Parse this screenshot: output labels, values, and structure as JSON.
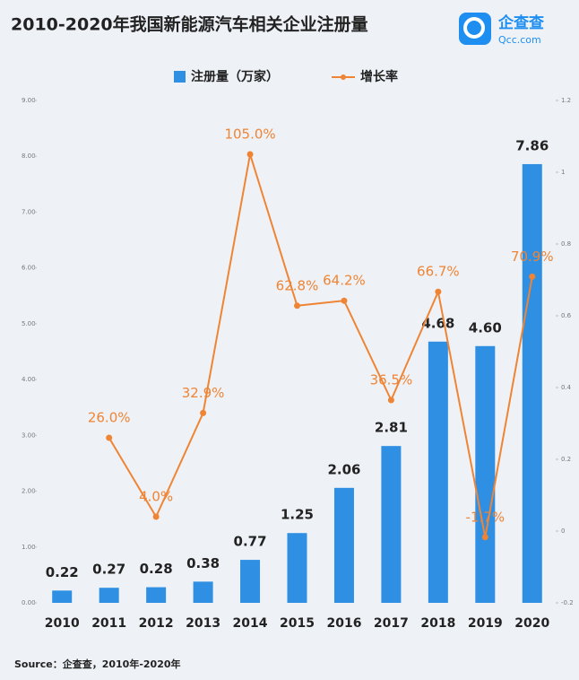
{
  "chart_data": {
    "type": "bar",
    "title": "2010-2020年我国新能源汽车相关企业注册量",
    "logo": {
      "name": "企查查",
      "url": "Qcc.com"
    },
    "source": "Source：企查查，2010年-2020年",
    "categories": [
      "2010",
      "2011",
      "2012",
      "2013",
      "2014",
      "2015",
      "2016",
      "2017",
      "2018",
      "2019",
      "2020"
    ],
    "series": [
      {
        "name": "注册量（万家）",
        "type": "bar",
        "color": "#2f8fe3",
        "values": [
          0.22,
          0.27,
          0.28,
          0.38,
          0.77,
          1.25,
          2.06,
          2.81,
          4.68,
          4.6,
          7.86
        ],
        "value_labels": [
          "0.22",
          "0.27",
          "0.28",
          "0.38",
          "0.77",
          "1.25",
          "2.06",
          "2.81",
          "4.68",
          "4.60",
          "7.86"
        ]
      },
      {
        "name": "增长率",
        "type": "line",
        "axis": "y2",
        "color": "#ef8434",
        "values": [
          null,
          0.26,
          0.04,
          0.329,
          1.05,
          0.628,
          0.642,
          0.365,
          0.667,
          -0.017,
          0.709
        ],
        "value_labels": [
          null,
          "26.0%",
          "4.0%",
          "32.9%",
          "105.0%",
          "62.8%",
          "64.2%",
          "36.5%",
          "66.7%",
          "-1.7%",
          "70.9%"
        ]
      }
    ],
    "ylim": [
      0,
      9
    ],
    "yticks": [
      {
        "value": 0,
        "label": "0.00"
      },
      {
        "value": 1,
        "label": "1.00"
      },
      {
        "value": 2,
        "label": "2.00"
      },
      {
        "value": 3,
        "label": "3.00"
      },
      {
        "value": 4,
        "label": "4.00"
      },
      {
        "value": 5,
        "label": "5.00"
      },
      {
        "value": 6,
        "label": "6.00"
      },
      {
        "value": 7,
        "label": "7.00"
      },
      {
        "value": 8,
        "label": "8.00"
      },
      {
        "value": 9,
        "label": "9.00"
      }
    ],
    "y2lim": [
      -0.2,
      1.2
    ],
    "y2ticks": [
      -0.2,
      0,
      0.2,
      0.4,
      0.6,
      0.8,
      1,
      1.2
    ],
    "grid": false
  }
}
